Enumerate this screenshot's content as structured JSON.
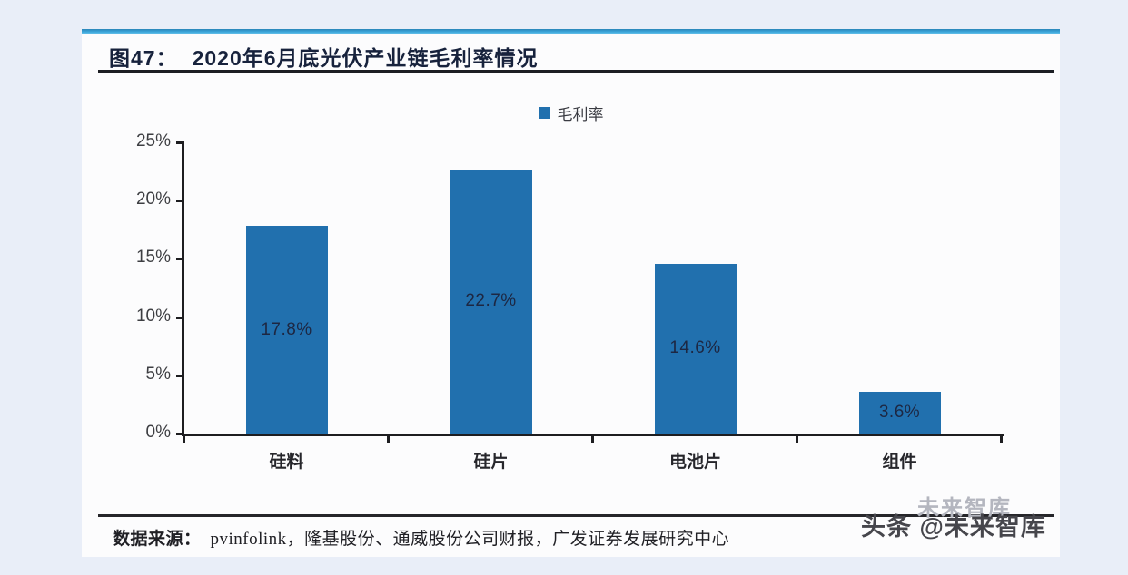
{
  "page": {
    "outer_bg": "#e9eef8",
    "card_bg": "#fcfcfd",
    "accent_color": "#3ea9dd"
  },
  "header": {
    "fig_label": "图47：",
    "title": "2020年6月底光伏产业链毛利率情况"
  },
  "chart_data": {
    "type": "bar",
    "title": "2020年6月底光伏产业链毛利率情况",
    "categories": [
      "硅料",
      "硅片",
      "电池片",
      "组件"
    ],
    "values": [
      17.8,
      22.7,
      14.6,
      3.6
    ],
    "value_labels": [
      "17.8%",
      "22.7%",
      "14.6%",
      "3.6%"
    ],
    "series_name": "毛利率",
    "xlabel": "",
    "ylabel": "",
    "ylim": [
      0,
      25
    ],
    "ytick_step": 5,
    "ytick_labels": [
      "0%",
      "5%",
      "10%",
      "15%",
      "20%",
      "25%"
    ],
    "grid": false,
    "bar_color": "#2170ae",
    "value_label_color": "#1d2742",
    "legend": {
      "position": "top-center",
      "items": [
        {
          "label": "毛利率",
          "color": "#2170ae"
        }
      ]
    }
  },
  "footer": {
    "source_label": "数据来源：",
    "source_text": "pvinfolink，隆基股份、通威股份公司财报，广发证券发展研究中心"
  },
  "watermark": {
    "light_text": "未来智库",
    "dark_text": "头条 @未来智库"
  }
}
